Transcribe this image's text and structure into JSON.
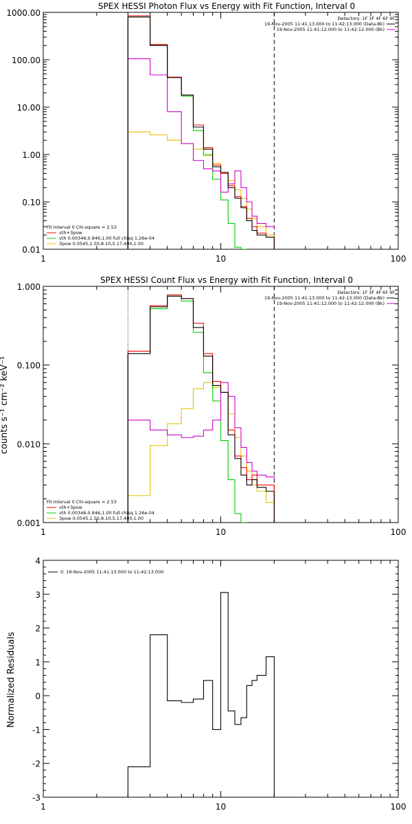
{
  "chart_data": [
    {
      "type": "line",
      "title": "SPEX HESSI Photon Flux vs Energy with Fit Function, Interval 0",
      "ylabel": "",
      "xlabel": "",
      "xscale": "log",
      "yscale": "log",
      "xlim": [
        1,
        100
      ],
      "ylim": [
        0.01,
        1000
      ],
      "x_ticks": [
        "1",
        "10",
        "100"
      ],
      "y_ticks": [
        "0.01",
        "0.10",
        "1.00",
        "10.00",
        "100.00",
        "1000.00"
      ],
      "legend_right": [
        "Detectors: 1F 3F 4F 6F 9F",
        "19-Nov-2005 11:41:13.000 to 11:42:13.000 (Data-Bk)",
        "19-Nov-2005 11:41:12.000 to 11:42:12.000 (Bk)"
      ],
      "legend_left": [
        "Fit Interval 0   Chi-square = 2.53",
        "vth+3pow",
        "vth 0.00346,0.846,1.00   full chisq 1.26e-04",
        "3pow 0.0545,1.50,8.10,5.17,400,1.00"
      ],
      "vlines": [
        {
          "x": 3,
          "style": "dotted"
        },
        {
          "x": 20,
          "style": "dashed"
        }
      ],
      "bin_edges": [
        3,
        4,
        5,
        6,
        7,
        8,
        9,
        10,
        11,
        12,
        13,
        14,
        15,
        16,
        18,
        20
      ],
      "series": [
        {
          "name": "Data-Bk",
          "color": "#000000",
          "values": [
            800,
            200,
            42,
            18,
            3.8,
            1.3,
            0.55,
            0.42,
            0.2,
            0.12,
            0.075,
            0.04,
            0.025,
            0.02,
            0.018
          ]
        },
        {
          "name": "vth+3pow",
          "color": "#ff0000",
          "values": [
            850,
            210,
            43,
            18,
            4.2,
            1.4,
            0.6,
            0.4,
            0.22,
            0.13,
            0.08,
            0.045,
            0.03,
            0.022,
            0.018
          ]
        },
        {
          "name": "Bk",
          "color": "#cc00cc",
          "values": [
            105,
            48,
            8,
            1.7,
            0.75,
            0.5,
            0.45,
            0.16,
            0.24,
            0.45,
            0.2,
            0.1,
            0.05,
            0.035,
            0.03,
            0.028
          ]
        },
        {
          "name": "vth",
          "color": "#00cc00",
          "values": [
            800,
            200,
            42,
            17,
            3.2,
            1.0,
            0.3,
            0.11,
            0.035,
            0.011,
            0.01
          ]
        },
        {
          "name": "3pow",
          "color": "#e6c000",
          "values": [
            3,
            2.6,
            2.0,
            1.7,
            1.3,
            0.95,
            0.65,
            0.4,
            0.28,
            0.18,
            0.12,
            0.07,
            0.045,
            0.03,
            0.02,
            0.012
          ]
        }
      ]
    },
    {
      "type": "line",
      "title": "SPEX HESSI Count Flux vs Energy with Fit Function, Interval 0",
      "ylabel": "counts s⁻¹ cm⁻² keV⁻¹",
      "xlabel": "",
      "xscale": "log",
      "yscale": "log",
      "xlim": [
        1,
        100
      ],
      "ylim": [
        0.001,
        1
      ],
      "x_ticks": [
        "1",
        "10",
        "100"
      ],
      "y_ticks": [
        "0.001",
        "0.010",
        "0.100",
        "1.000"
      ],
      "legend_right": [
        "Detectors: 1F 3F 4F 6F 9F",
        "19-Nov-2005 11:41:13.000 to 11:42:13.000 (Data-Bk)",
        "19-Nov-2005 11:41:12.000 to 11:42:12.000 (Bk)"
      ],
      "legend_left": [
        "Fit Interval 0   Chi-square = 2.53",
        "vth+3pow",
        "vth 0.00346,0.846,1.00   full chisq 1.26e-04",
        "3pow 0.0545,1.50,8.10,5.17,400,1.00"
      ],
      "vlines": [
        {
          "x": 3,
          "style": "dotted"
        },
        {
          "x": 20,
          "style": "dashed"
        }
      ],
      "bin_edges": [
        3,
        4,
        5,
        6,
        7,
        8,
        9,
        10,
        11,
        12,
        13,
        14,
        15,
        16,
        18,
        20
      ],
      "series": [
        {
          "name": "Data-Bk",
          "color": "#000000",
          "values": [
            0.14,
            0.55,
            0.75,
            0.7,
            0.3,
            0.13,
            0.055,
            0.045,
            0.013,
            0.0065,
            0.004,
            0.003,
            0.0035,
            0.0028,
            0.0025
          ]
        },
        {
          "name": "vth+3pow",
          "color": "#ff0000",
          "values": [
            0.15,
            0.57,
            0.78,
            0.7,
            0.34,
            0.14,
            0.062,
            0.045,
            0.015,
            0.007,
            0.005,
            0.0035,
            0.004,
            0.003,
            0.003
          ]
        },
        {
          "name": "Bk",
          "color": "#cc00cc",
          "values": [
            0.02,
            0.015,
            0.013,
            0.012,
            0.0125,
            0.015,
            0.02,
            0.06,
            0.04,
            0.016,
            0.009,
            0.0058,
            0.0045,
            0.004,
            0.0038,
            0.0036
          ]
        },
        {
          "name": "vth",
          "color": "#00cc00",
          "values": [
            0.14,
            0.52,
            0.75,
            0.65,
            0.26,
            0.08,
            0.035,
            0.011,
            0.0035,
            0.0013,
            0.001
          ]
        },
        {
          "name": "3pow",
          "color": "#e6c000",
          "values": [
            0.0022,
            0.0095,
            0.018,
            0.028,
            0.05,
            0.06,
            0.052,
            0.045,
            0.024,
            0.012,
            0.007,
            0.0045,
            0.003,
            0.0025,
            0.0018,
            0.0012
          ]
        }
      ]
    },
    {
      "type": "line",
      "title": "",
      "ylabel": "Normalized Residuals",
      "xlabel": "",
      "xscale": "log",
      "xlim": [
        1,
        100
      ],
      "ylim": [
        -3,
        4
      ],
      "x_ticks": [
        "1",
        "10",
        "100"
      ],
      "y_ticks": [
        "-3",
        "-2",
        "-1",
        "0",
        "1",
        "2",
        "3",
        "4"
      ],
      "legend": [
        "0. 19-Nov-2005 11:41:13.000 to 11:42:13.000"
      ],
      "bin_edges": [
        3,
        4,
        5,
        6,
        7,
        8,
        9,
        10,
        11,
        12,
        13,
        14,
        15,
        16,
        18,
        20
      ],
      "series": [
        {
          "name": "0. 19-Nov-2005 11:41:13.000 to 11:42:13.000",
          "color": "#000000",
          "values": [
            -2.1,
            1.8,
            -0.15,
            -0.2,
            -0.1,
            0.45,
            -1.0,
            3.05,
            -0.45,
            -0.85,
            -0.65,
            0.3,
            0.45,
            0.6,
            1.15
          ]
        }
      ]
    }
  ]
}
